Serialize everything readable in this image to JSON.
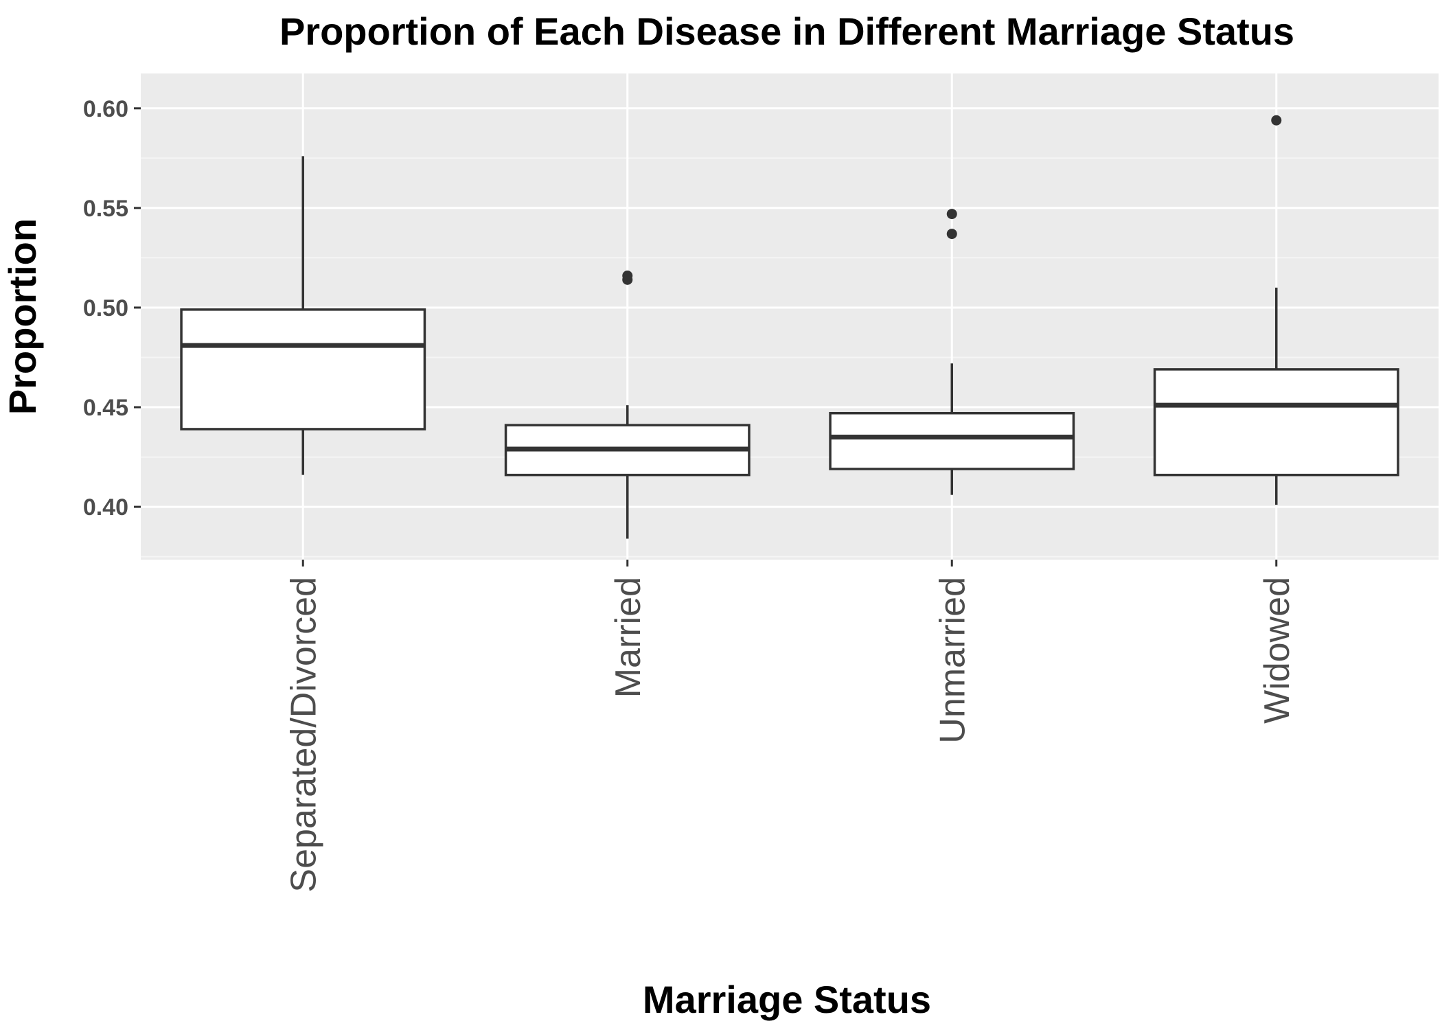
{
  "chart_data": {
    "type": "boxplot",
    "title": "Proportion of Each Disease in Different Marriage Status",
    "xlabel": "Marriage Status",
    "ylabel": "Proportion",
    "ylim": [
      0.3735,
      0.6175
    ],
    "yticks": [
      0.4,
      0.45,
      0.5,
      0.55,
      0.6
    ],
    "ytick_labels": [
      "0.40",
      "0.45",
      "0.50",
      "0.55",
      "0.60"
    ],
    "grid": true,
    "legend": "none",
    "categories": [
      "Separated/Divorced",
      "Married",
      "Unmarried",
      "Widowed"
    ],
    "boxes": [
      {
        "category": "Separated/Divorced",
        "whisker_low": 0.416,
        "q1": 0.439,
        "median": 0.481,
        "q3": 0.499,
        "whisker_high": 0.576,
        "outliers": []
      },
      {
        "category": "Married",
        "whisker_low": 0.384,
        "q1": 0.416,
        "median": 0.429,
        "q3": 0.441,
        "whisker_high": 0.451,
        "outliers": [
          0.514,
          0.516
        ]
      },
      {
        "category": "Unmarried",
        "whisker_low": 0.406,
        "q1": 0.419,
        "median": 0.435,
        "q3": 0.447,
        "whisker_high": 0.472,
        "outliers": [
          0.537,
          0.547
        ]
      },
      {
        "category": "Widowed",
        "whisker_low": 0.401,
        "q1": 0.416,
        "median": 0.451,
        "q3": 0.469,
        "whisker_high": 0.51,
        "outliers": [
          0.594
        ]
      }
    ],
    "colors": {
      "panel_background": "#ebebeb",
      "grid_major": "#ffffff",
      "grid_minor": "#f5f5f5",
      "box_fill": "#ffffff",
      "box_line": "#333333",
      "outlier": "#333333",
      "tick_label": "#4d4d4d",
      "tick_mark": "#333333",
      "text": "#000000"
    }
  }
}
